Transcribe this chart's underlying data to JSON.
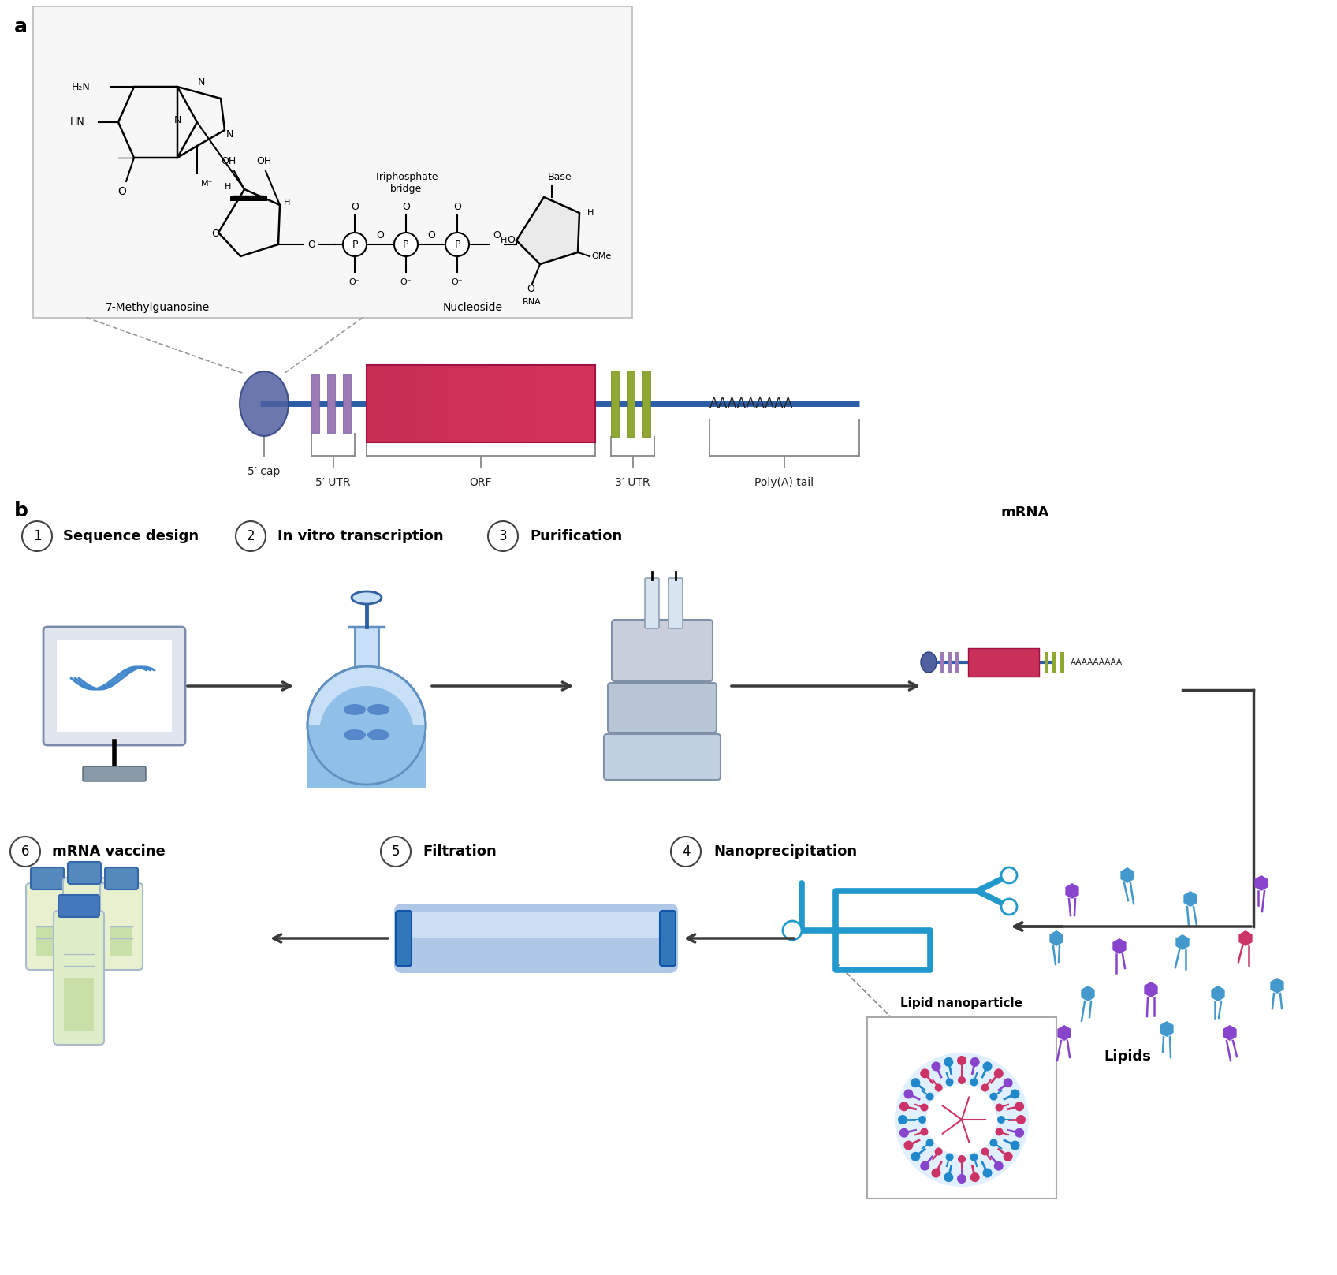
{
  "background_color": "#ffffff",
  "panel_a_label": "a",
  "panel_b_label": "b",
  "box_facecolor": "#f7f7f7",
  "box_edgecolor": "#bbbbbb",
  "mrna_backbone_color": "#2B5EA7",
  "mrna_cap_color": "#5B6FA6",
  "mrna_5utr_color": "#9B7BB5",
  "mrna_orf_color": "#C8305A",
  "mrna_3utr_color": "#8FA832",
  "arrow_color": "#3a3a3a",
  "step_circle_edge": "#444444",
  "step1_label": "Sequence design",
  "step2_label": "In vitro transcription",
  "step3_label": "Purification",
  "step4_label": "Nanoprecipitation",
  "step5_label": "Filtration",
  "step6_label": "mRNA vaccine",
  "mrna_label": "mRNA",
  "lipid_label": "Lipids",
  "lnp_label": "Lipid nanoparticle",
  "chem_label1": "7-Methylguanosine",
  "chem_label2": "Triphosphate\nbridge",
  "chem_label3": "Nucleoside",
  "poly_a_text": "AAAAAAAAA"
}
